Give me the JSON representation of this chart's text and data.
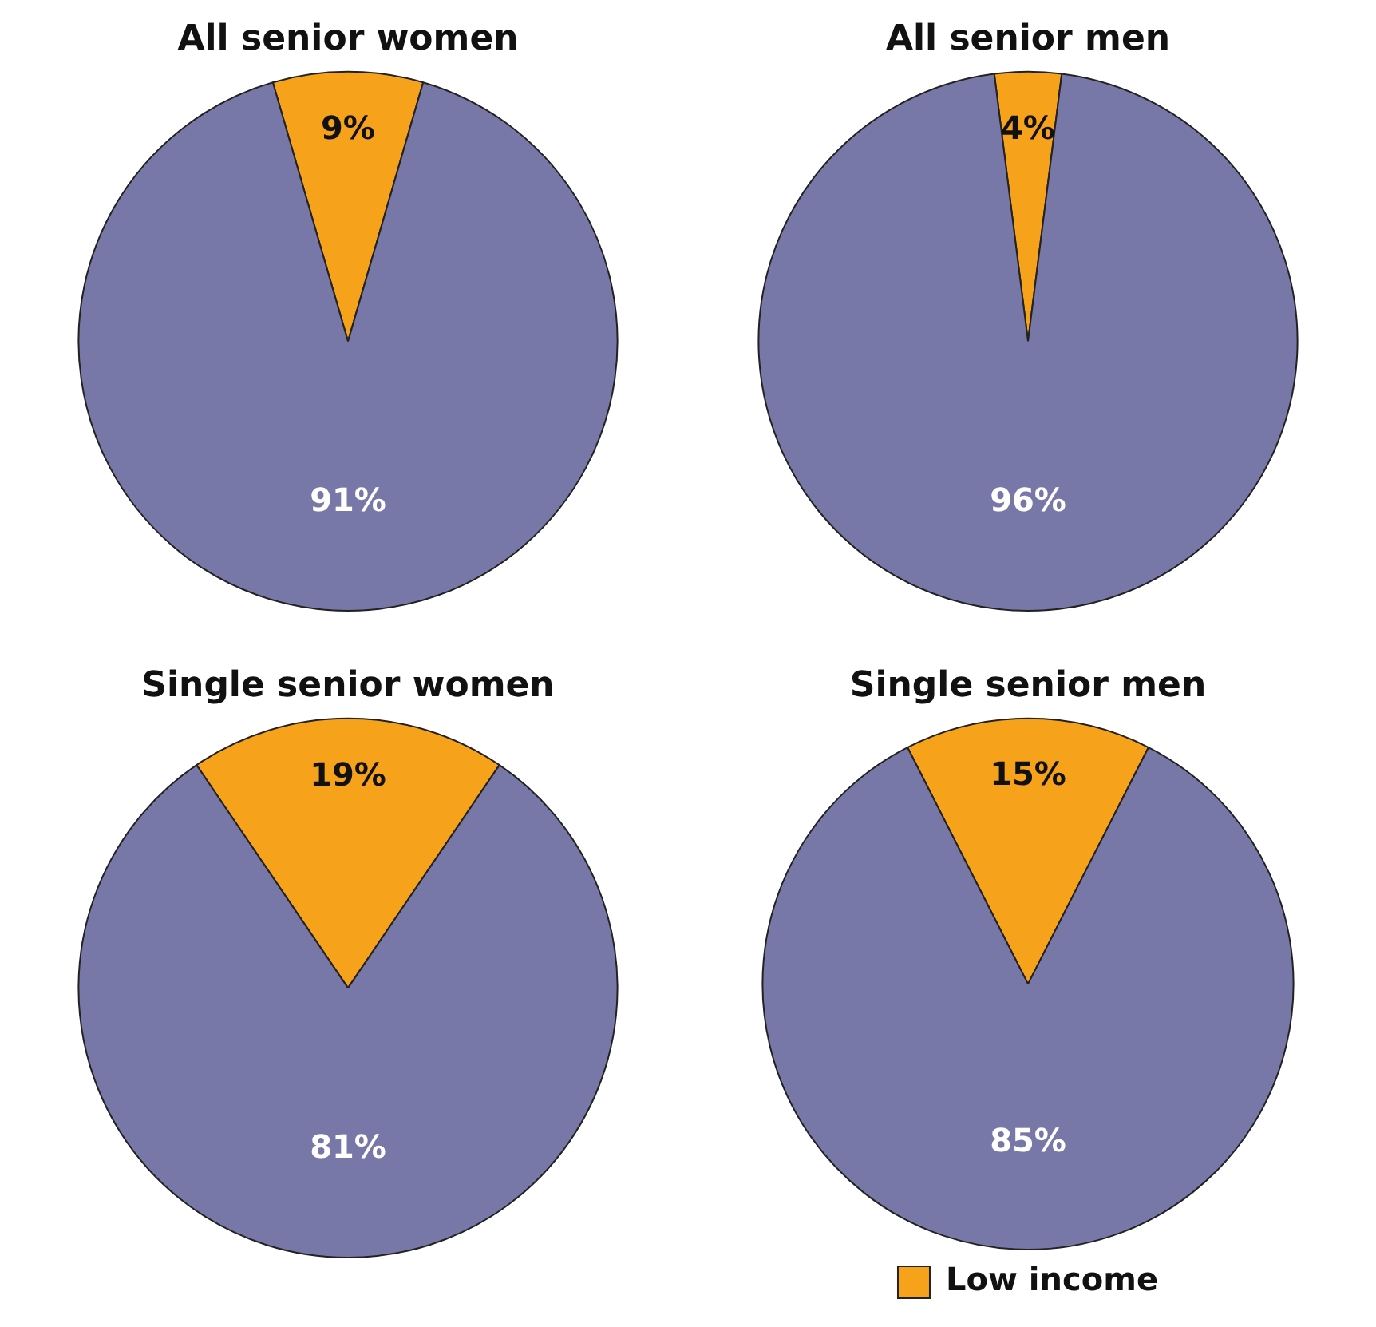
{
  "chart_data": [
    {
      "type": "pie",
      "title": "All senior women",
      "categories": [
        null,
        null
      ],
      "values": [
        9,
        91
      ],
      "colors": [
        "#f7a21b",
        "#7878a8"
      ],
      "value_labels": [
        "9%",
        "91%"
      ]
    },
    {
      "type": "pie",
      "title": "All senior men",
      "categories": [
        null,
        null
      ],
      "values": [
        4,
        96
      ],
      "colors": [
        "#f7a21b",
        "#7878a8"
      ],
      "value_labels": [
        "4%",
        "96%"
      ]
    },
    {
      "type": "pie",
      "title": "Single senior women",
      "categories": [
        null,
        null
      ],
      "values": [
        19,
        81
      ],
      "colors": [
        "#f7a21b",
        "#7878a8"
      ],
      "value_labels": [
        "19%",
        "81%"
      ]
    },
    {
      "type": "pie",
      "title": "Single senior men",
      "categories": [
        "Low income",
        null
      ],
      "values": [
        15,
        85
      ],
      "colors": [
        "#f7a21b",
        "#7878a8"
      ],
      "value_labels": [
        "15%",
        "85%"
      ],
      "legend": "bottom"
    }
  ]
}
